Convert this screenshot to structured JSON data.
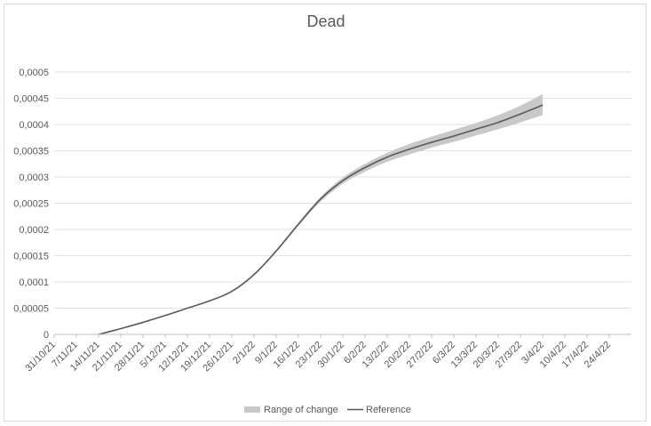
{
  "chart_data": {
    "type": "line",
    "title": "Dead",
    "xlabel": "",
    "ylabel": "",
    "y_ticks": [
      "0",
      "0,00005",
      "0,0001",
      "0,00015",
      "0,0002",
      "0,00025",
      "0,0003",
      "0,00035",
      "0,0004",
      "0,00045",
      "0,0005"
    ],
    "ylim": [
      0,
      0.0005
    ],
    "x_ticks": [
      "31/10/21",
      "7/11/21",
      "14/11/21",
      "21/11/21",
      "28/11/21",
      "5/12/21",
      "12/12/21",
      "19/12/21",
      "26/12/21",
      "2/1/22",
      "9/1/22",
      "16/1/22",
      "23/1/22",
      "30/1/22",
      "6/2/22",
      "13/2/22",
      "20/2/22",
      "27/2/22",
      "6/3/22",
      "13/3/22",
      "20/3/22",
      "27/3/22",
      "3/4/22",
      "10/4/22",
      "17/4/22",
      "24/4/22"
    ],
    "legend_position": "bottom",
    "grid": true,
    "colors": {
      "band": "#c9c9c9",
      "line": "#595959",
      "grid": "#d9d9d9",
      "axis": "#bfbfbf"
    },
    "series": [
      {
        "name": "Range of change",
        "kind": "band",
        "x": [
          "14/11/21",
          "21/11/21",
          "28/11/21",
          "5/12/21",
          "12/12/21",
          "19/12/21",
          "26/12/21",
          "2/1/22",
          "9/1/22",
          "16/1/22",
          "23/1/22",
          "30/1/22",
          "6/2/22",
          "13/2/22",
          "20/2/22",
          "27/2/22",
          "6/3/22",
          "13/3/22",
          "20/3/22",
          "27/3/22",
          "3/4/22"
        ],
        "lower": [
          0,
          1.1e-05,
          2.3e-05,
          3.6e-05,
          5e-05,
          6.4e-05,
          8.2e-05,
          0.000113,
          0.000157,
          0.000207,
          0.000253,
          0.000287,
          0.00031,
          0.000329,
          0.000343,
          0.000356,
          0.000367,
          0.000379,
          0.000391,
          0.000404,
          0.000418
        ],
        "upper": [
          0,
          1.1e-05,
          2.3e-05,
          3.6e-05,
          5e-05,
          6.4e-05,
          8.2e-05,
          0.000115,
          0.000161,
          0.000213,
          0.000262,
          0.000299,
          0.000325,
          0.000346,
          0.000363,
          0.000377,
          0.00039,
          0.000403,
          0.000418,
          0.000436,
          0.000458
        ]
      },
      {
        "name": "Reference",
        "kind": "line",
        "x": [
          "14/11/21",
          "21/11/21",
          "28/11/21",
          "5/12/21",
          "12/12/21",
          "19/12/21",
          "26/12/21",
          "2/1/22",
          "9/1/22",
          "16/1/22",
          "23/1/22",
          "30/1/22",
          "6/2/22",
          "13/2/22",
          "20/2/22",
          "27/2/22",
          "6/3/22",
          "13/3/22",
          "20/3/22",
          "27/3/22",
          "3/4/22"
        ],
        "values": [
          0,
          1.1e-05,
          2.3e-05,
          3.6e-05,
          5e-05,
          6.4e-05,
          8.2e-05,
          0.000114,
          0.000159,
          0.00021,
          0.000258,
          0.000293,
          0.000318,
          0.000338,
          0.000353,
          0.000366,
          0.000378,
          0.000391,
          0.000404,
          0.00042,
          0.000437
        ]
      }
    ]
  }
}
